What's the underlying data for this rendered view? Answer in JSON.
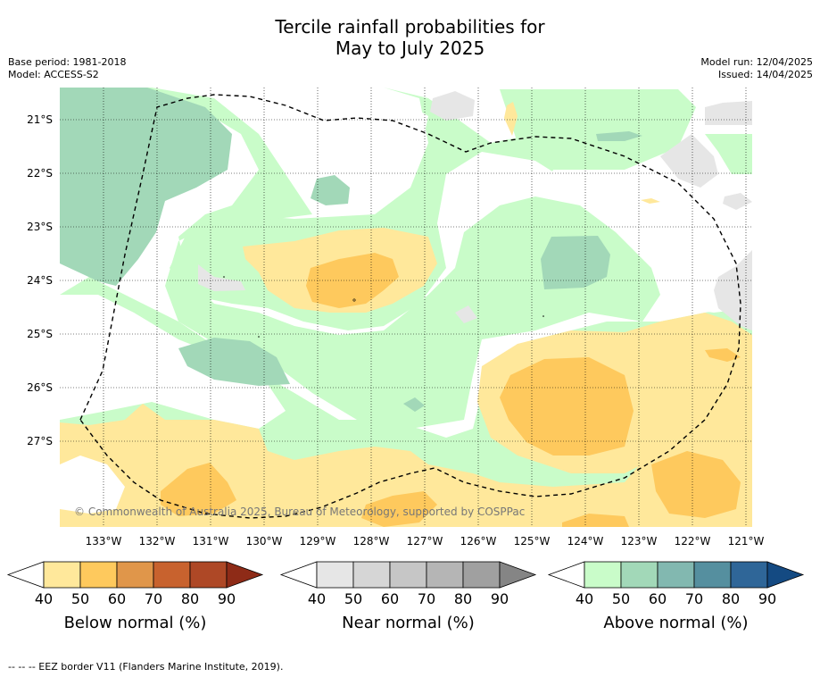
{
  "title": {
    "line1": "Tercile rainfall probabilities for",
    "line2": "May to July 2025"
  },
  "meta_left": {
    "base_period": "Base period: 1981-2018",
    "model": "Model: ACCESS-S2"
  },
  "meta_right": {
    "model_run": "Model run: 12/04/2025",
    "issued": "Issued: 14/04/2025"
  },
  "copyright": "© Commonwealth of Australia 2025, Bureau of Meteorology, supported by COSPPac",
  "latitude_labels": [
    "21°S",
    "22°S",
    "23°S",
    "24°S",
    "25°S",
    "26°S",
    "27°S"
  ],
  "longitude_labels": [
    "133°W",
    "132°W",
    "131°W",
    "130°W",
    "129°W",
    "128°W",
    "127°W",
    "126°W",
    "125°W",
    "124°W",
    "123°W",
    "122°W",
    "121°W"
  ],
  "colorbars": [
    {
      "title": "Below normal (%)",
      "ticks": [
        "40",
        "50",
        "60",
        "70",
        "80",
        "90"
      ],
      "colors": [
        "#ffffff",
        "#ffe89b",
        "#fec95d",
        "#e0964a",
        "#c8622e",
        "#ae4826",
        "#8e2b17"
      ]
    },
    {
      "title": "Near normal (%)",
      "ticks": [
        "40",
        "50",
        "60",
        "70",
        "80",
        "90"
      ],
      "colors": [
        "#ffffff",
        "#e6e6e6",
        "#d6d6d6",
        "#c6c6c6",
        "#b5b5b5",
        "#a0a0a0",
        "#858585"
      ]
    },
    {
      "title": "Above normal (%)",
      "ticks": [
        "40",
        "50",
        "60",
        "70",
        "80",
        "90"
      ],
      "colors": [
        "#ffffff",
        "#c9fcc9",
        "#a2d8b8",
        "#82b8b0",
        "#558f9f",
        "#2f6698",
        "#144a82"
      ]
    }
  ],
  "footer": "-- -- -- EEZ border V11 (Flanders Marine Institute, 2019).",
  "colors": {
    "below_40": "#ffe89b",
    "below_50": "#fec95d",
    "near_40": "#e6e6e6",
    "above_40": "#c9fcc9",
    "above_50": "#a2d8b8"
  }
}
